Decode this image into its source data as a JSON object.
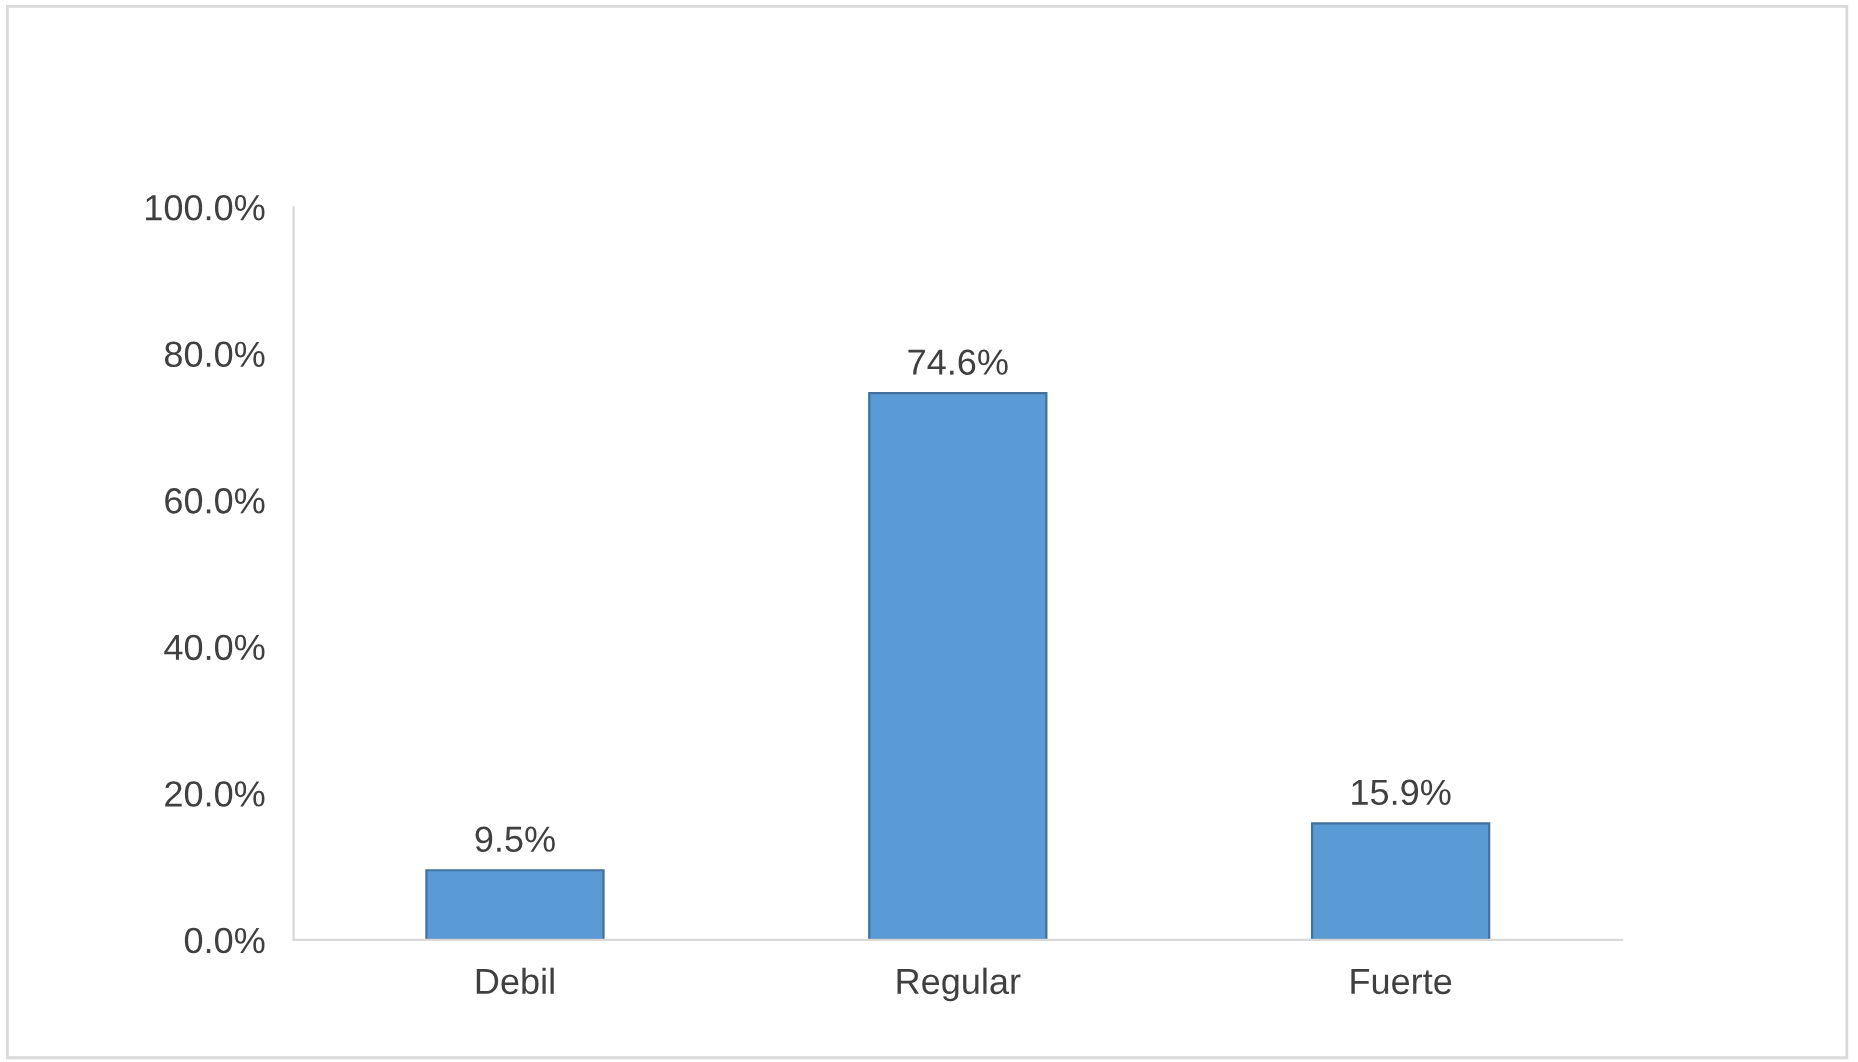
{
  "chart_data": {
    "type": "bar",
    "categories": [
      "Debil",
      "Regular",
      "Fuerte"
    ],
    "values": [
      9.5,
      74.6,
      15.9
    ],
    "color": "#5b9bd5",
    "value_labels": [
      "9.5%",
      "74.6%",
      "15.9%"
    ],
    "ylim": [
      0,
      100
    ],
    "yticks": [
      {
        "value": 0,
        "label": "0.0%"
      },
      {
        "value": 20,
        "label": "20.0%"
      },
      {
        "value": 40,
        "label": "40.0%"
      },
      {
        "value": 60,
        "label": "60.0%"
      },
      {
        "value": 80,
        "label": "80.0%"
      },
      {
        "value": 100,
        "label": "100.0%"
      }
    ],
    "grid": false
  }
}
